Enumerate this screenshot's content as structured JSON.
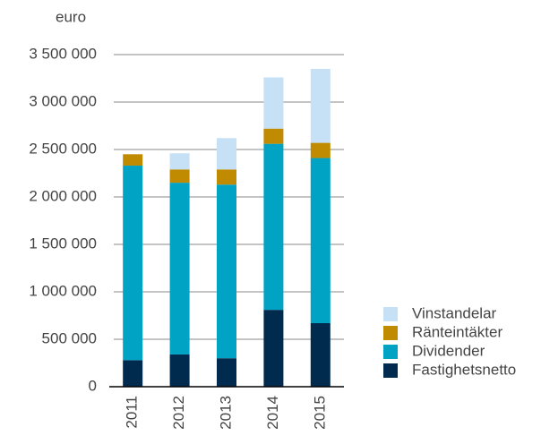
{
  "chart_data": {
    "type": "stacked_bar",
    "y_label": "euro",
    "categories": [
      "2011",
      "2012",
      "2013",
      "2014",
      "2015"
    ],
    "series": [
      {
        "name": "Fastighetsnetto",
        "color": "#002b4f",
        "values": [
          280000,
          340000,
          300000,
          810000,
          670000
        ]
      },
      {
        "name": "Dividender",
        "color": "#00a3c4",
        "values": [
          2050000,
          1810000,
          1830000,
          1750000,
          1740000
        ]
      },
      {
        "name": "Ränteintäkter",
        "color": "#c08b00",
        "values": [
          120000,
          140000,
          160000,
          160000,
          160000
        ]
      },
      {
        "name": "Vinstandelar",
        "color": "#c6e0f5",
        "values": [
          0,
          170000,
          330000,
          540000,
          780000
        ]
      }
    ],
    "ylim": [
      0,
      3500000
    ],
    "yticks": [
      0,
      {
        "value": 500000,
        "label": "500 000"
      },
      {
        "value": 1000000,
        "label": "1 000 000"
      },
      {
        "value": 1500000,
        "label": "1 500 000"
      },
      {
        "value": 2000000,
        "label": "2 000 000"
      },
      {
        "value": 2500000,
        "label": "2 500 000"
      },
      {
        "value": 3000000,
        "label": "3 000 000"
      },
      {
        "value": 3500000,
        "label": "3 500 000"
      }
    ],
    "grid": true
  }
}
